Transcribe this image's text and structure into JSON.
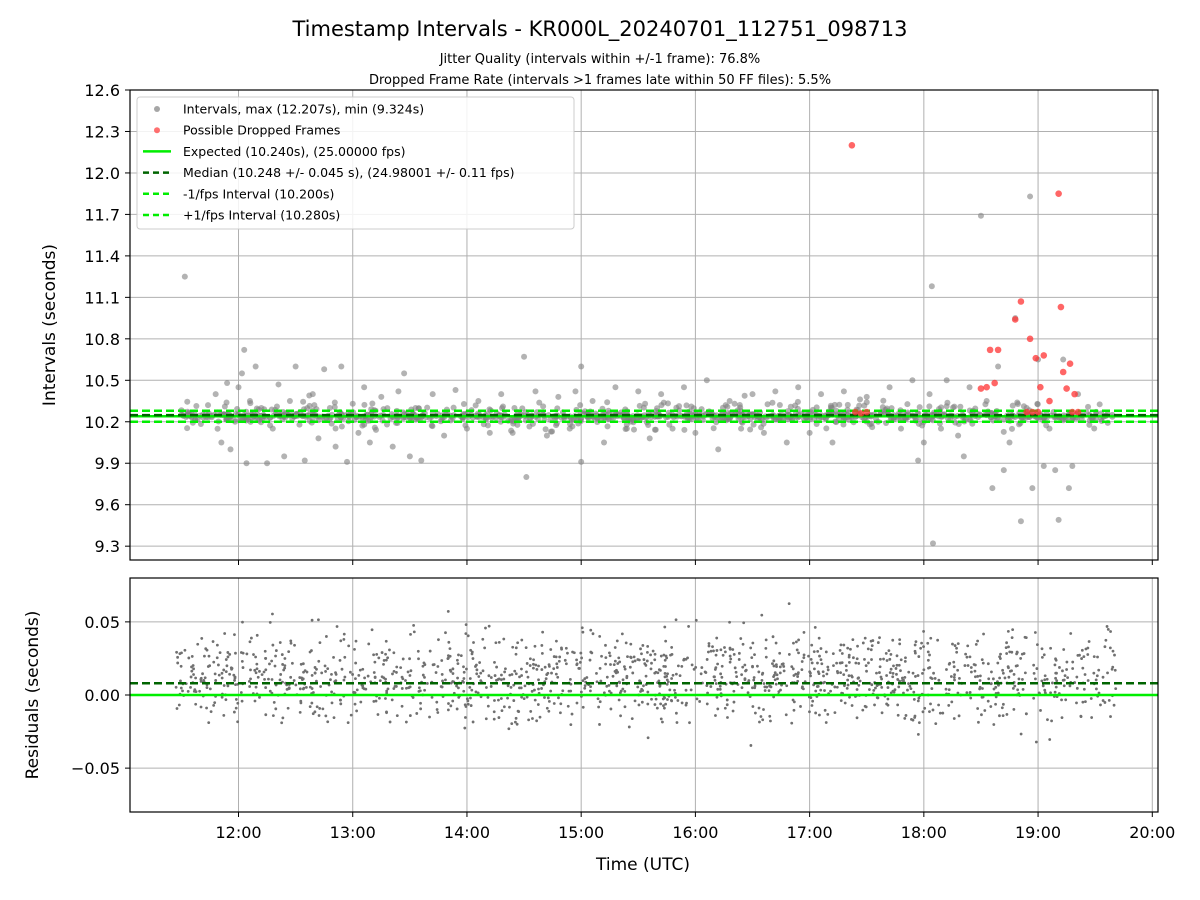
{
  "chart_data": [
    {
      "type": "scatter",
      "title": "Timestamp Intervals - KR000L_20240701_112751_098713",
      "subtitle_lines": [
        "Jitter Quality (intervals within +/-1 frame): 76.8%",
        "Dropped Frame Rate (intervals >1 frames late within 50 FF files): 5.5%"
      ],
      "xlabel": "",
      "ylabel": "Intervals (seconds)",
      "xlim": [
        11.05,
        20.05
      ],
      "ylim": [
        9.2,
        12.6
      ],
      "yticks": [
        "9.3",
        "9.6",
        "9.9",
        "10.2",
        "10.5",
        "10.8",
        "11.1",
        "11.4",
        "11.7",
        "12.0",
        "12.3",
        "12.6"
      ],
      "grid": true,
      "legend_position": "top-left",
      "legend": [
        {
          "label": "Intervals, max (12.207s), min (9.324s)",
          "kind": "marker",
          "color": "#808080"
        },
        {
          "label": "Possible Dropped Frames",
          "kind": "marker",
          "color": "#ff3333"
        },
        {
          "label": "Expected (10.240s), (25.00000 fps)",
          "kind": "line",
          "color": "#00ee00",
          "dash": "solid"
        },
        {
          "label": "Median (10.248 +/- 0.045 s), (24.98001 +/- 0.11 fps)",
          "kind": "line",
          "color": "#006400",
          "dash": "dashed"
        },
        {
          "label": "-1/fps Interval (10.200s)",
          "kind": "line",
          "color": "#00ee00",
          "dash": "dashed"
        },
        {
          "label": "+1/fps Interval (10.280s)",
          "kind": "line",
          "color": "#00ee00",
          "dash": "dashed"
        }
      ],
      "hlines": [
        {
          "y": 10.24,
          "color": "#00ee00",
          "dash": "solid"
        },
        {
          "y": 10.248,
          "color": "#006400",
          "dash": "dashed"
        },
        {
          "y": 10.2,
          "color": "#00ee00",
          "dash": "dashed"
        },
        {
          "y": 10.28,
          "color": "#00ee00",
          "dash": "dashed"
        }
      ],
      "series": [
        {
          "name": "Intervals, max (12.207s), min (9.324s)",
          "color": "#808080",
          "points": [
            [
              11.53,
              11.25
            ],
            [
              11.8,
              10.4
            ],
            [
              11.85,
              10.05
            ],
            [
              11.9,
              10.48
            ],
            [
              11.93,
              10.0
            ],
            [
              11.97,
              10.2
            ],
            [
              12.0,
              10.45
            ],
            [
              12.03,
              10.55
            ],
            [
              12.05,
              10.72
            ],
            [
              12.07,
              9.9
            ],
            [
              12.1,
              10.35
            ],
            [
              12.15,
              10.6
            ],
            [
              12.2,
              10.3
            ],
            [
              12.25,
              9.9
            ],
            [
              12.3,
              10.15
            ],
            [
              12.35,
              10.47
            ],
            [
              12.4,
              9.95
            ],
            [
              12.45,
              10.35
            ],
            [
              12.5,
              10.6
            ],
            [
              12.58,
              9.92
            ],
            [
              12.65,
              10.4
            ],
            [
              12.7,
              10.08
            ],
            [
              12.75,
              10.58
            ],
            [
              12.8,
              10.3
            ],
            [
              12.85,
              10.02
            ],
            [
              12.9,
              10.6
            ],
            [
              12.95,
              9.91
            ],
            [
              13.0,
              10.33
            ],
            [
              13.05,
              10.12
            ],
            [
              13.1,
              10.45
            ],
            [
              13.15,
              10.05
            ],
            [
              13.2,
              10.28
            ],
            [
              13.25,
              10.38
            ],
            [
              13.3,
              10.18
            ],
            [
              13.35,
              10.02
            ],
            [
              13.4,
              10.42
            ],
            [
              13.45,
              10.55
            ],
            [
              13.5,
              9.95
            ],
            [
              13.55,
              10.3
            ],
            [
              13.6,
              9.92
            ],
            [
              13.7,
              10.4
            ],
            [
              13.8,
              10.1
            ],
            [
              13.9,
              10.43
            ],
            [
              14.0,
              10.15
            ],
            [
              14.1,
              10.35
            ],
            [
              14.2,
              10.12
            ],
            [
              14.3,
              10.4
            ],
            [
              14.4,
              10.12
            ],
            [
              14.5,
              10.67
            ],
            [
              14.52,
              9.8
            ],
            [
              14.6,
              10.42
            ],
            [
              14.7,
              10.1
            ],
            [
              14.8,
              10.38
            ],
            [
              14.9,
              10.15
            ],
            [
              14.95,
              10.42
            ],
            [
              15.0,
              10.6
            ],
            [
              15.0,
              9.91
            ],
            [
              15.1,
              10.35
            ],
            [
              15.2,
              10.05
            ],
            [
              15.3,
              10.45
            ],
            [
              15.4,
              10.15
            ],
            [
              15.5,
              10.42
            ],
            [
              15.6,
              10.08
            ],
            [
              15.7,
              10.4
            ],
            [
              15.8,
              10.15
            ],
            [
              15.9,
              10.45
            ],
            [
              16.0,
              10.12
            ],
            [
              16.1,
              10.5
            ],
            [
              16.2,
              10.0
            ],
            [
              16.3,
              10.35
            ],
            [
              16.4,
              10.15
            ],
            [
              16.5,
              10.4
            ],
            [
              16.6,
              10.12
            ],
            [
              16.7,
              10.42
            ],
            [
              16.8,
              10.05
            ],
            [
              16.9,
              10.45
            ],
            [
              17.0,
              10.12
            ],
            [
              17.1,
              10.4
            ],
            [
              17.2,
              10.05
            ],
            [
              17.3,
              10.42
            ],
            [
              17.5,
              10.38
            ],
            [
              17.6,
              10.2
            ],
            [
              17.7,
              10.45
            ],
            [
              17.8,
              10.15
            ],
            [
              17.9,
              10.5
            ],
            [
              17.95,
              9.92
            ],
            [
              18.0,
              10.05
            ],
            [
              18.05,
              10.4
            ],
            [
              18.07,
              11.18
            ],
            [
              18.08,
              9.32
            ],
            [
              18.15,
              10.15
            ],
            [
              18.2,
              10.5
            ],
            [
              18.3,
              10.1
            ],
            [
              18.35,
              9.95
            ],
            [
              18.4,
              10.45
            ],
            [
              18.5,
              11.69
            ],
            [
              18.55,
              10.35
            ],
            [
              18.6,
              9.72
            ],
            [
              18.65,
              10.6
            ],
            [
              18.7,
              9.85
            ],
            [
              18.75,
              10.05
            ],
            [
              18.8,
              10.95
            ],
            [
              18.85,
              9.48
            ],
            [
              18.9,
              10.3
            ],
            [
              18.93,
              11.83
            ],
            [
              18.95,
              9.72
            ],
            [
              19.0,
              10.65
            ],
            [
              19.05,
              9.88
            ],
            [
              19.1,
              10.15
            ],
            [
              19.15,
              9.85
            ],
            [
              19.18,
              9.49
            ],
            [
              19.22,
              10.65
            ],
            [
              19.27,
              9.72
            ],
            [
              19.3,
              9.88
            ],
            [
              19.35,
              10.4
            ],
            [
              19.45,
              10.25
            ],
            [
              19.55,
              10.22
            ],
            [
              19.65,
              10.25
            ]
          ]
        },
        {
          "name": "Possible Dropped Frames",
          "color": "#ff3333",
          "points": [
            [
              17.37,
              12.2
            ],
            [
              17.4,
              10.27
            ],
            [
              17.45,
              10.26
            ],
            [
              17.5,
              10.27
            ],
            [
              18.5,
              10.44
            ],
            [
              18.55,
              10.45
            ],
            [
              18.58,
              10.72
            ],
            [
              18.62,
              10.48
            ],
            [
              18.65,
              10.72
            ],
            [
              18.8,
              10.94
            ],
            [
              18.85,
              11.07
            ],
            [
              18.9,
              10.27
            ],
            [
              18.93,
              10.8
            ],
            [
              18.95,
              10.27
            ],
            [
              18.98,
              10.66
            ],
            [
              19.0,
              10.27
            ],
            [
              19.02,
              10.45
            ],
            [
              19.05,
              10.68
            ],
            [
              19.1,
              10.35
            ],
            [
              19.18,
              11.85
            ],
            [
              19.2,
              11.03
            ],
            [
              19.22,
              10.56
            ],
            [
              19.25,
              10.44
            ],
            [
              19.28,
              10.62
            ],
            [
              19.3,
              10.27
            ],
            [
              19.32,
              10.4
            ],
            [
              19.35,
              10.27
            ]
          ]
        }
      ]
    },
    {
      "type": "scatter",
      "title": "",
      "xlabel": "Time (UTC)",
      "ylabel": "Residuals (seconds)",
      "xlim": [
        11.05,
        20.05
      ],
      "ylim": [
        -0.08,
        0.08
      ],
      "xticks": [
        "12:00",
        "13:00",
        "14:00",
        "15:00",
        "16:00",
        "17:00",
        "18:00",
        "19:00",
        "20:00"
      ],
      "yticks": [
        "−0.05",
        "0.00",
        "0.05"
      ],
      "grid": true,
      "hlines": [
        {
          "y": 0.0,
          "color": "#00ee00",
          "dash": "solid"
        },
        {
          "y": 0.008,
          "color": "#006400",
          "dash": "dashed"
        }
      ],
      "series": [
        {
          "color": "#707070",
          "x_range": [
            11.45,
            19.68
          ],
          "center": 0.012,
          "spread": 0.022,
          "count": 1500
        }
      ]
    }
  ]
}
